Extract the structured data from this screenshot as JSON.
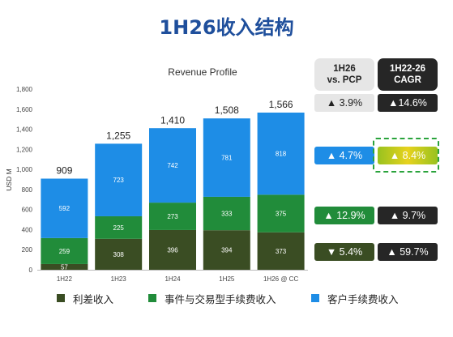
{
  "title": "1H26收入结构",
  "chart_data": {
    "type": "bar",
    "stacked": true,
    "title": "Revenue Profile",
    "ylabel": "USD M",
    "ylim": [
      0,
      1800
    ],
    "yticks": [
      0,
      200,
      400,
      600,
      800,
      1000,
      1200,
      1400,
      1600,
      1800
    ],
    "yticklabels": [
      "0",
      "200",
      "400",
      "600",
      "800",
      "1,000",
      "1,200",
      "1,400",
      "1,600",
      "1,800"
    ],
    "grid": false,
    "categories": [
      "1H22",
      "1H23",
      "1H24",
      "1H25",
      "1H26 @ CC"
    ],
    "series": [
      {
        "name": "利差收入",
        "color": "#3a4d23",
        "values": [
          57,
          308,
          396,
          394,
          373
        ]
      },
      {
        "name": "事件与交易型手续费收入",
        "color": "#218c3a",
        "values": [
          259,
          225,
          273,
          333,
          375
        ]
      },
      {
        "name": "客户手续费收入",
        "color": "#1e8de6",
        "values": [
          592,
          723,
          742,
          781,
          818
        ]
      }
    ],
    "totals": [
      909,
      1255,
      1410,
      1508,
      1566
    ],
    "total_labels": [
      "909",
      "1,255",
      "1,410",
      "1,508",
      "1,566"
    ],
    "legend_position": "bottom"
  },
  "table": {
    "col1_header": [
      "1H26",
      "vs. PCP"
    ],
    "col2_header": [
      "1H22-26",
      "CAGR"
    ],
    "rows": [
      {
        "pcp": "▲ 3.9%",
        "cagr": "▲14.6%"
      },
      {
        "pcp": "▲ 4.7%",
        "cagr": "▲ 8.4%"
      },
      {
        "pcp": "▲ 12.9%",
        "cagr": "▲ 9.7%"
      },
      {
        "pcp": "▼ 5.4%",
        "cagr": "▲ 59.7%"
      }
    ]
  },
  "legend": [
    "利差收入",
    "事件与交易型手续费收入",
    "客户手续费收入"
  ],
  "colors": {
    "title": "#1f4f9c",
    "interest": "#3a4d23",
    "event": "#218c3a",
    "client": "#1e8de6",
    "highlight": "#2aa33c"
  }
}
